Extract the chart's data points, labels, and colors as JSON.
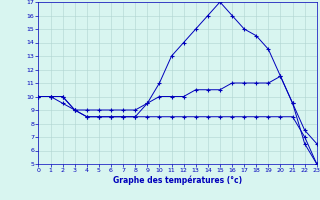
{
  "title": "Graphe des températures (°c)",
  "line_color": "#0000bb",
  "bg_color": "#d8f5f0",
  "grid_color": "#b0d4d0",
  "ylim": [
    5,
    17
  ],
  "xlim": [
    0,
    23
  ],
  "yticks": [
    5,
    6,
    7,
    8,
    9,
    10,
    11,
    12,
    13,
    14,
    15,
    16,
    17
  ],
  "xticks": [
    0,
    1,
    2,
    3,
    4,
    5,
    6,
    7,
    8,
    9,
    10,
    11,
    12,
    13,
    14,
    15,
    16,
    17,
    18,
    19,
    20,
    21,
    22,
    23
  ],
  "series": [
    {
      "x": [
        0,
        1,
        2,
        3,
        4,
        5,
        6,
        7,
        8,
        9,
        10,
        11,
        12,
        13,
        14,
        15,
        16,
        17,
        18,
        19,
        20,
        21,
        22,
        23
      ],
      "y": [
        10,
        10,
        10,
        9,
        8.5,
        8.5,
        8.5,
        8.5,
        8.5,
        9.5,
        11,
        13,
        14,
        15,
        16,
        17,
        16,
        15,
        14.5,
        13.5,
        11.5,
        9.5,
        7.5,
        6.5
      ]
    },
    {
      "x": [
        0,
        1,
        2,
        3,
        4,
        5,
        6,
        7,
        8,
        9,
        10,
        11,
        12,
        13,
        14,
        15,
        16,
        17,
        18,
        19,
        20,
        21,
        22,
        23
      ],
      "y": [
        10,
        10,
        10,
        9,
        9,
        9,
        9,
        9,
        9,
        9.5,
        10,
        10,
        10,
        10.5,
        10.5,
        10.5,
        11,
        11,
        11,
        11,
        11.5,
        9.5,
        6.5,
        5
      ]
    },
    {
      "x": [
        0,
        1,
        2,
        3,
        4,
        5,
        6,
        7,
        8,
        9,
        10,
        11,
        12,
        13,
        14,
        15,
        16,
        17,
        18,
        19,
        20,
        21,
        22,
        23
      ],
      "y": [
        10,
        10,
        9.5,
        9,
        8.5,
        8.5,
        8.5,
        8.5,
        8.5,
        8.5,
        8.5,
        8.5,
        8.5,
        8.5,
        8.5,
        8.5,
        8.5,
        8.5,
        8.5,
        8.5,
        8.5,
        8.5,
        7.0,
        5
      ]
    }
  ]
}
